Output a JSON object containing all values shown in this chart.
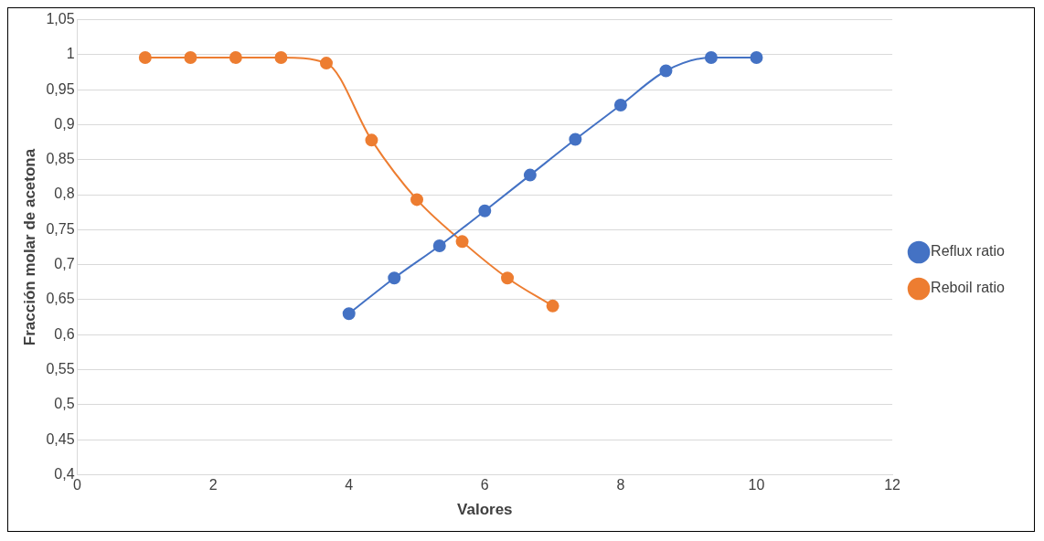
{
  "chart_data": {
    "type": "line",
    "xlabel": "Valores",
    "ylabel": "Fracción molar de acetona",
    "xlim": [
      0,
      12
    ],
    "xticks": [
      0,
      2,
      4,
      6,
      8,
      10,
      12
    ],
    "ylim": [
      0.4,
      1.05
    ],
    "yticks": [
      {
        "value": 0.4,
        "label": "0,4"
      },
      {
        "value": 0.45,
        "label": "0,45"
      },
      {
        "value": 0.5,
        "label": "0,5"
      },
      {
        "value": 0.55,
        "label": "0,55"
      },
      {
        "value": 0.6,
        "label": "0,6"
      },
      {
        "value": 0.65,
        "label": "0,65"
      },
      {
        "value": 0.7,
        "label": "0,7"
      },
      {
        "value": 0.75,
        "label": "0,75"
      },
      {
        "value": 0.8,
        "label": "0,8"
      },
      {
        "value": 0.85,
        "label": "0,85"
      },
      {
        "value": 0.9,
        "label": "0,9"
      },
      {
        "value": 0.95,
        "label": "0,95"
      },
      1,
      {
        "value": 1.05,
        "label": "1,05"
      }
    ],
    "grid": "y",
    "legend": "right",
    "marker": "circle",
    "line_style": "solid",
    "series": [
      {
        "name": "Reflux ratio",
        "color": "#4472c4",
        "x": [
          4,
          4.667,
          5.333,
          6,
          6.667,
          7.333,
          8,
          8.667,
          9.333,
          10
        ],
        "values": [
          0.63,
          0.681,
          0.727,
          0.777,
          0.828,
          0.879,
          0.928,
          0.977,
          0.996,
          0.996
        ]
      },
      {
        "name": "Reboil ratio",
        "color": "#ed7d31",
        "x": [
          1,
          1.667,
          2.333,
          3,
          3.667,
          4.333,
          5,
          5.667,
          6.333,
          7
        ],
        "values": [
          0.996,
          0.996,
          0.996,
          0.996,
          0.988,
          0.878,
          0.793,
          0.733,
          0.681,
          0.641
        ]
      }
    ]
  }
}
